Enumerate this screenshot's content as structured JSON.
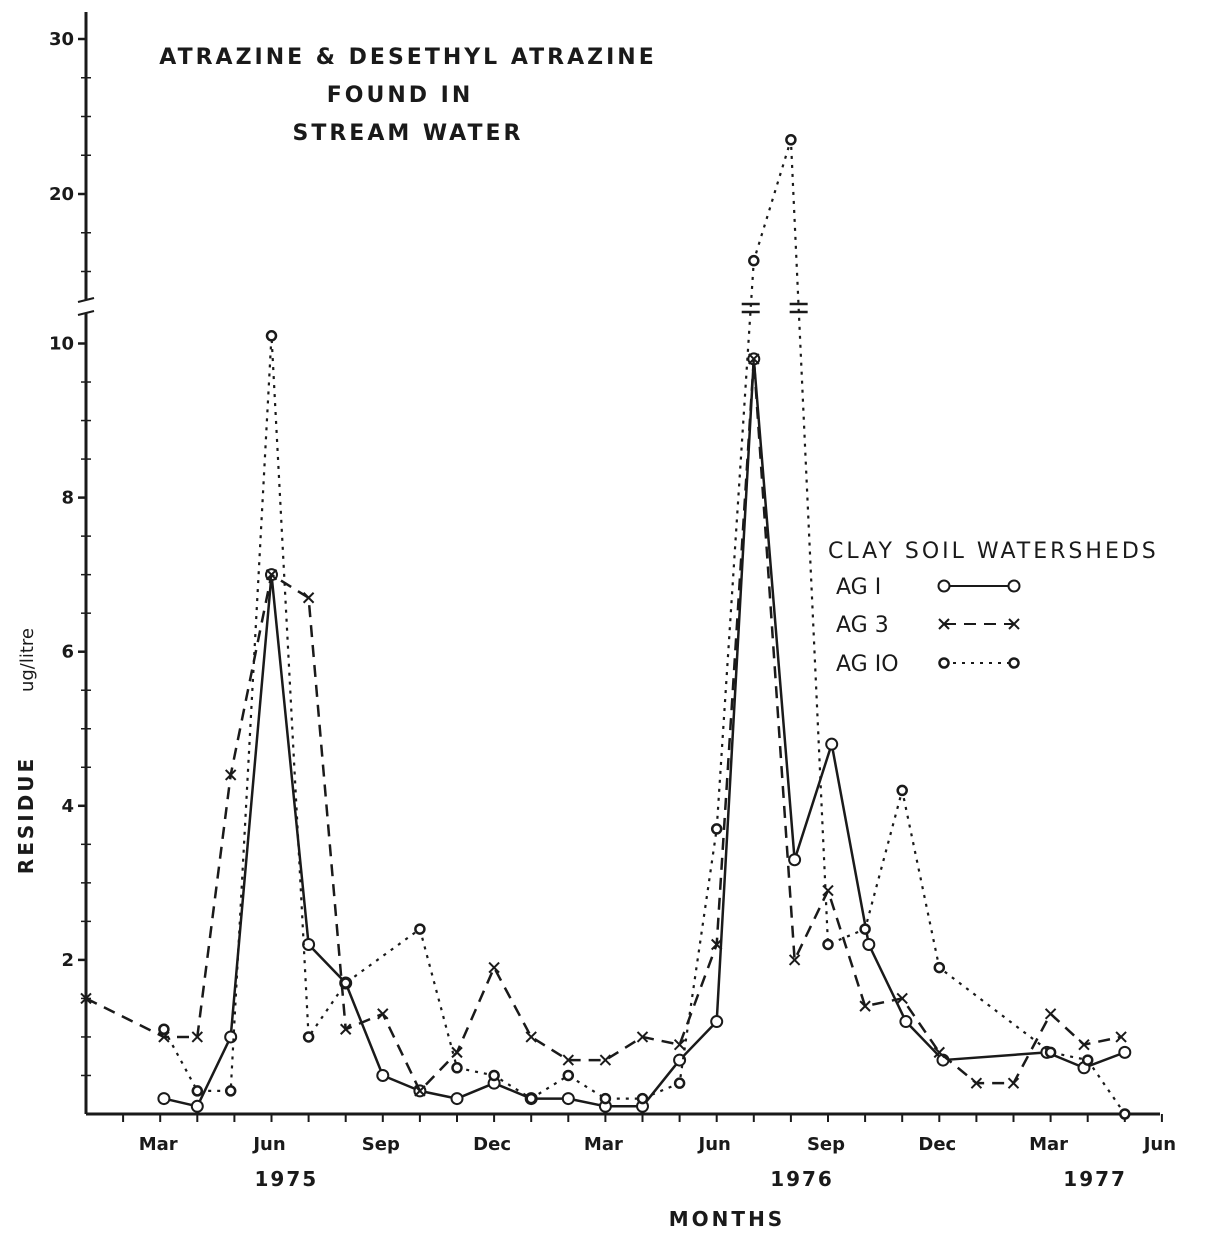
{
  "chart_data": {
    "type": "line",
    "title_lines": [
      "ATRAZINE & DESETHYL ATRAZINE",
      "FOUND IN",
      "STREAM WATER"
    ],
    "xlabel": "MONTHS",
    "ylabel": "RESIDUE",
    "ylabel_unit": "ug/litre",
    "x_unit": "months since Jan 1975",
    "xlim": [
      1,
      29.5
    ],
    "ylim": [
      0,
      30
    ],
    "y_break": [
      10.5,
      14
    ],
    "y_ticks": [
      {
        "value": 2,
        "label": "2"
      },
      {
        "value": 4,
        "label": "4"
      },
      {
        "value": 6,
        "label": "6"
      },
      {
        "value": 8,
        "label": "8"
      },
      {
        "value": 10,
        "label": "10"
      },
      {
        "value": 20,
        "label": "20"
      },
      {
        "value": 30,
        "label": "30"
      }
    ],
    "x_ticks": [
      {
        "x": 3,
        "label": "Mar"
      },
      {
        "x": 6,
        "label": "Jun"
      },
      {
        "x": 9,
        "label": "Sep"
      },
      {
        "x": 12,
        "label": "Dec"
      },
      {
        "x": 15,
        "label": "Mar"
      },
      {
        "x": 18,
        "label": "Jun"
      },
      {
        "x": 21,
        "label": "Sep"
      },
      {
        "x": 24,
        "label": "Dec"
      },
      {
        "x": 27,
        "label": "Mar"
      },
      {
        "x": 30,
        "label": "Jun"
      }
    ],
    "year_labels": [
      {
        "x": 6.4,
        "label": "1975"
      },
      {
        "x": 20.3,
        "label": "1976"
      },
      {
        "x": 28.2,
        "label": "1977"
      }
    ],
    "legend": {
      "heading": "CLAY SOIL WATERSHEDS",
      "position": "right"
    },
    "series": [
      {
        "name": "AG I",
        "style": "solid",
        "marker": "open-circle",
        "color": "#1a1a1a",
        "x": [
          3.1,
          4.0,
          4.9,
          6.0,
          7.0,
          8.0,
          9.0,
          10.0,
          11.0,
          12.0,
          13.0,
          14.0,
          15.0,
          16.0,
          17.0,
          18.0,
          19.0,
          20.1,
          21.1,
          22.1,
          23.1,
          24.1,
          26.9,
          27.9,
          29.0
        ],
        "y": [
          0.2,
          0.1,
          1.0,
          7.0,
          2.2,
          1.7,
          0.5,
          0.3,
          0.2,
          0.4,
          0.2,
          0.2,
          0.1,
          0.1,
          0.7,
          1.2,
          9.8,
          3.3,
          4.8,
          2.2,
          1.2,
          0.7,
          0.8,
          0.6,
          0.8
        ]
      },
      {
        "name": "AG 3",
        "style": "dashed",
        "marker": "x",
        "color": "#1a1a1a",
        "x": [
          1.0,
          3.1,
          4.0,
          4.9,
          6.0,
          7.0,
          8.0,
          9.0,
          10.0,
          11.0,
          12.0,
          13.0,
          14.0,
          15.0,
          16.0,
          17.0,
          18.0,
          19.0,
          20.1,
          21.0,
          22.0,
          23.0,
          24.0,
          25.0,
          26.0,
          27.0,
          27.9,
          28.9
        ],
        "y": [
          1.5,
          1.0,
          1.0,
          4.4,
          7.0,
          6.7,
          1.1,
          1.3,
          0.3,
          0.8,
          1.9,
          1.0,
          0.7,
          0.7,
          1.0,
          0.9,
          2.2,
          9.8,
          2.0,
          2.9,
          1.4,
          1.5,
          0.8,
          0.4,
          0.4,
          1.3,
          0.9,
          1.0
        ]
      },
      {
        "name": "AG IO",
        "style": "dotted",
        "marker": "small-circle",
        "color": "#1a1a1a",
        "x": [
          3.1,
          4.0,
          4.9,
          6.0,
          7.0,
          8.0,
          10.0,
          11.0,
          12.0,
          13.0,
          14.0,
          15.0,
          16.0,
          17.0,
          18.0,
          19.0,
          20.0,
          21.0,
          22.0,
          23.0,
          24.0,
          27.0,
          28.0,
          29.0
        ],
        "y": [
          1.1,
          0.3,
          0.3,
          10.1,
          1.0,
          1.7,
          2.4,
          0.6,
          0.5,
          0.2,
          0.5,
          0.2,
          0.2,
          0.4,
          3.7,
          15.7,
          23.5,
          2.2,
          2.4,
          4.2,
          1.9,
          0.8,
          0.7,
          0.0
        ]
      }
    ]
  }
}
